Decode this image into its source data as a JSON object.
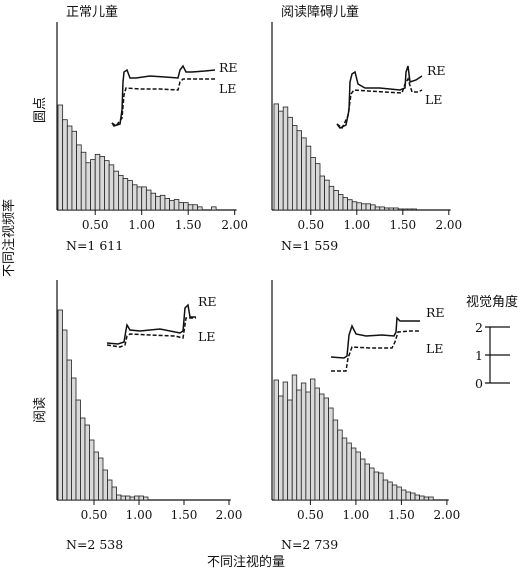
{
  "figure": {
    "x_axis_title": "不同注视的量",
    "y_axis_title": "不同注视频率",
    "column_titles": [
      "正常儿童",
      "阅读障碍儿童"
    ],
    "row_titles": [
      "圆点",
      "阅读"
    ],
    "inset_labels": {
      "right_eye": "RE",
      "left_eye": "LE"
    },
    "scale_bar": {
      "title": "视觉角度",
      "ticks": [
        "2",
        "1",
        "0"
      ],
      "values": [
        2,
        1,
        0
      ]
    }
  },
  "chart_data": [
    {
      "type": "bar",
      "panel": "正常儿童-圆点",
      "n_label": "N=1 611",
      "xlim": [
        0.1,
        2.0
      ],
      "xticks": [
        "0.50",
        "1.00",
        "1.50",
        "2.00"
      ],
      "xtick_values": [
        0.5,
        1.0,
        1.5,
        2.0
      ],
      "bin_width": 0.05,
      "x": [
        0.1,
        0.15,
        0.2,
        0.25,
        0.3,
        0.35,
        0.4,
        0.45,
        0.5,
        0.55,
        0.6,
        0.65,
        0.7,
        0.75,
        0.8,
        0.85,
        0.9,
        0.95,
        1.0,
        1.05,
        1.1,
        1.15,
        1.2,
        1.25,
        1.3,
        1.35,
        1.4,
        1.45,
        1.5,
        1.55,
        1.6,
        1.65,
        1.7,
        1.75
      ],
      "values": [
        100,
        86,
        80,
        75,
        62,
        55,
        45,
        48,
        53,
        51,
        47,
        43,
        37,
        33,
        30,
        28,
        24,
        22,
        22,
        19,
        16,
        13,
        14,
        11,
        9,
        10,
        7,
        7,
        5,
        5,
        3,
        0,
        0,
        3
      ]
    },
    {
      "type": "bar",
      "panel": "阅读障碍儿童-圆点",
      "n_label": "N=1 559",
      "xlim": [
        0.1,
        2.0
      ],
      "xticks": [
        "0.50",
        "1.00",
        "1.50",
        "2.00"
      ],
      "xtick_values": [
        0.5,
        1.0,
        1.5,
        2.0
      ],
      "bin_width": 0.05,
      "x": [
        0.1,
        0.15,
        0.2,
        0.25,
        0.3,
        0.35,
        0.4,
        0.45,
        0.5,
        0.55,
        0.6,
        0.65,
        0.7,
        0.75,
        0.8,
        0.85,
        0.9,
        0.95,
        1.0,
        1.05,
        1.1,
        1.15,
        1.2,
        1.25,
        1.3,
        1.35,
        1.4,
        1.45,
        1.5,
        1.55,
        1.6
      ],
      "values": [
        103,
        96,
        100,
        90,
        82,
        77,
        70,
        62,
        51,
        45,
        33,
        29,
        23,
        19,
        15,
        12,
        10,
        8,
        7,
        6,
        6,
        5,
        3,
        3,
        2,
        2,
        2,
        1,
        1,
        1,
        1
      ]
    },
    {
      "type": "bar",
      "panel": "正常儿童-阅读",
      "n_label": "N=2 538",
      "xlim": [
        0.1,
        2.0
      ],
      "xticks": [
        "0.50",
        "1.00",
        "1.50",
        "2.00"
      ],
      "xtick_values": [
        0.5,
        1.0,
        1.5,
        2.0
      ],
      "bin_width": 0.05,
      "x": [
        0.1,
        0.15,
        0.2,
        0.25,
        0.3,
        0.35,
        0.4,
        0.45,
        0.5,
        0.55,
        0.6,
        0.65,
        0.7,
        0.75,
        0.8,
        0.85,
        0.9,
        0.95,
        1.0,
        1.05
      ],
      "values": [
        190,
        170,
        140,
        122,
        100,
        82,
        75,
        60,
        48,
        42,
        30,
        20,
        13,
        5,
        4,
        4,
        3,
        4,
        4,
        3
      ]
    },
    {
      "type": "bar",
      "panel": "阅读障碍儿童-阅读",
      "n_label": "N=2 739",
      "xlim": [
        0.1,
        2.0
      ],
      "xticks": [
        "0.50",
        "1.00",
        "1.50",
        "2.00"
      ],
      "xtick_values": [
        0.5,
        1.0,
        1.5,
        2.0
      ],
      "bin_width": 0.05,
      "x": [
        0.1,
        0.15,
        0.2,
        0.25,
        0.3,
        0.35,
        0.4,
        0.45,
        0.5,
        0.55,
        0.6,
        0.65,
        0.7,
        0.75,
        0.8,
        0.85,
        0.9,
        0.95,
        1.0,
        1.05,
        1.1,
        1.15,
        1.2,
        1.25,
        1.3,
        1.35,
        1.4,
        1.45,
        1.5,
        1.55,
        1.6,
        1.65,
        1.7,
        1.75,
        1.8
      ],
      "values": [
        120,
        104,
        118,
        100,
        125,
        110,
        117,
        108,
        121,
        112,
        106,
        102,
        92,
        80,
        70,
        62,
        57,
        52,
        48,
        41,
        36,
        32,
        28,
        27,
        20,
        18,
        15,
        13,
        10,
        8,
        7,
        5,
        4,
        3,
        3
      ]
    }
  ]
}
